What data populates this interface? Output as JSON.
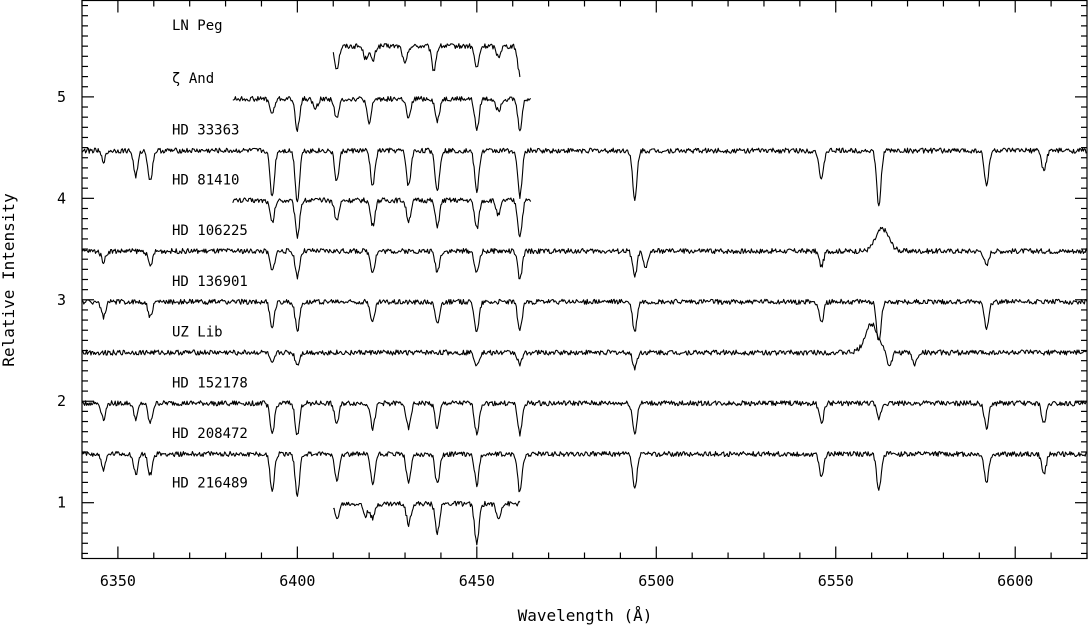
{
  "chart_data": {
    "type": "line",
    "title": "",
    "xlabel": "Wavelength (Å)",
    "ylabel": "Relative Intensity",
    "xlim": [
      6340,
      6620
    ],
    "ylim": [
      0.45,
      5.95
    ],
    "x_major_ticks": [
      6350,
      6400,
      6450,
      6500,
      6550,
      6600
    ],
    "y_major_ticks": [
      1,
      2,
      3,
      4,
      5
    ],
    "x_tick_labels": [
      "6350",
      "6400",
      "6450",
      "6500",
      "6550",
      "6600"
    ],
    "y_tick_labels": [
      "1",
      "2",
      "3",
      "4",
      "5"
    ],
    "grid": false,
    "series": [
      {
        "name": "LN Peg",
        "x_range": [
          6410,
          6462
        ],
        "continuum": 5.5,
        "lines": [
          [
            6411,
            0.22
          ],
          [
            6419,
            0.12
          ],
          [
            6421,
            0.15
          ],
          [
            6430,
            0.18
          ],
          [
            6438,
            0.24
          ],
          [
            6450,
            0.22
          ],
          [
            6456,
            0.1
          ],
          [
            6462,
            0.28
          ]
        ]
      },
      {
        "name": "ζ And",
        "x_range": [
          6382,
          6465
        ],
        "continuum": 4.98,
        "lines": [
          [
            6393,
            0.15
          ],
          [
            6400,
            0.3
          ],
          [
            6405,
            0.1
          ],
          [
            6411,
            0.2
          ],
          [
            6420,
            0.25
          ],
          [
            6431,
            0.2
          ],
          [
            6439,
            0.22
          ],
          [
            6450,
            0.3
          ],
          [
            6456,
            0.12
          ],
          [
            6462,
            0.3
          ]
        ]
      },
      {
        "name": "HD 33363",
        "x_range": [
          6340,
          6620
        ],
        "continuum": 4.47,
        "lines": [
          [
            6346,
            0.1
          ],
          [
            6355,
            0.25
          ],
          [
            6359,
            0.3
          ],
          [
            6393,
            0.45
          ],
          [
            6400,
            0.5
          ],
          [
            6411,
            0.3
          ],
          [
            6421,
            0.35
          ],
          [
            6431,
            0.35
          ],
          [
            6439,
            0.4
          ],
          [
            6450,
            0.4
          ],
          [
            6462,
            0.45
          ],
          [
            6494,
            0.5
          ],
          [
            6546,
            0.3
          ],
          [
            6562,
            0.55
          ],
          [
            6592,
            0.35
          ],
          [
            6608,
            0.2
          ]
        ]
      },
      {
        "name": "HD 81410",
        "x_range": [
          6382,
          6465
        ],
        "continuum": 3.98,
        "lines": [
          [
            6393,
            0.22
          ],
          [
            6400,
            0.35
          ],
          [
            6411,
            0.2
          ],
          [
            6421,
            0.25
          ],
          [
            6431,
            0.2
          ],
          [
            6439,
            0.25
          ],
          [
            6450,
            0.28
          ],
          [
            6456,
            0.15
          ],
          [
            6462,
            0.35
          ]
        ]
      },
      {
        "name": "HD 106225",
        "x_range": [
          6340,
          6620
        ],
        "continuum": 3.48,
        "lines": [
          [
            6346,
            0.1
          ],
          [
            6359,
            0.15
          ],
          [
            6393,
            0.2
          ],
          [
            6400,
            0.25
          ],
          [
            6421,
            0.2
          ],
          [
            6439,
            0.2
          ],
          [
            6450,
            0.22
          ],
          [
            6462,
            0.28
          ],
          [
            6494,
            0.25
          ],
          [
            6497,
            0.18
          ],
          [
            6546,
            0.15
          ],
          [
            6592,
            0.15
          ]
        ],
        "emission": [
          6563,
          0.22
        ]
      },
      {
        "name": "HD 136901",
        "x_range": [
          6340,
          6620
        ],
        "continuum": 2.98,
        "lines": [
          [
            6346,
            0.15
          ],
          [
            6359,
            0.15
          ],
          [
            6393,
            0.25
          ],
          [
            6400,
            0.28
          ],
          [
            6421,
            0.2
          ],
          [
            6439,
            0.22
          ],
          [
            6450,
            0.3
          ],
          [
            6462,
            0.28
          ],
          [
            6494,
            0.3
          ],
          [
            6546,
            0.2
          ],
          [
            6562,
            0.4
          ],
          [
            6592,
            0.25
          ]
        ]
      },
      {
        "name": "UZ Lib",
        "x_range": [
          6340,
          6620
        ],
        "continuum": 2.48,
        "lines": [
          [
            6393,
            0.12
          ],
          [
            6400,
            0.12
          ],
          [
            6450,
            0.12
          ],
          [
            6462,
            0.12
          ],
          [
            6494,
            0.15
          ],
          [
            6565,
            0.15
          ],
          [
            6572,
            0.12
          ]
        ],
        "emission": [
          6560,
          0.28
        ]
      },
      {
        "name": "HD 152178",
        "x_range": [
          6340,
          6620
        ],
        "continuum": 1.98,
        "lines": [
          [
            6346,
            0.15
          ],
          [
            6355,
            0.15
          ],
          [
            6359,
            0.2
          ],
          [
            6393,
            0.3
          ],
          [
            6400,
            0.32
          ],
          [
            6411,
            0.2
          ],
          [
            6421,
            0.25
          ],
          [
            6431,
            0.25
          ],
          [
            6439,
            0.25
          ],
          [
            6450,
            0.3
          ],
          [
            6462,
            0.3
          ],
          [
            6494,
            0.3
          ],
          [
            6546,
            0.2
          ],
          [
            6562,
            0.15
          ],
          [
            6592,
            0.25
          ],
          [
            6608,
            0.2
          ]
        ]
      },
      {
        "name": "HD 208472",
        "x_range": [
          6340,
          6620
        ],
        "continuum": 1.48,
        "lines": [
          [
            6346,
            0.15
          ],
          [
            6355,
            0.2
          ],
          [
            6359,
            0.2
          ],
          [
            6393,
            0.35
          ],
          [
            6400,
            0.4
          ],
          [
            6411,
            0.25
          ],
          [
            6421,
            0.3
          ],
          [
            6431,
            0.3
          ],
          [
            6439,
            0.3
          ],
          [
            6450,
            0.3
          ],
          [
            6462,
            0.38
          ],
          [
            6494,
            0.35
          ],
          [
            6546,
            0.22
          ],
          [
            6562,
            0.35
          ],
          [
            6592,
            0.28
          ],
          [
            6608,
            0.2
          ]
        ]
      },
      {
        "name": "HD 216489",
        "x_range": [
          6410,
          6462
        ],
        "continuum": 0.99,
        "lines": [
          [
            6411,
            0.15
          ],
          [
            6419,
            0.12
          ],
          [
            6421,
            0.15
          ],
          [
            6431,
            0.2
          ],
          [
            6439,
            0.28
          ],
          [
            6450,
            0.4
          ],
          [
            6456,
            0.15
          ]
        ]
      }
    ]
  }
}
